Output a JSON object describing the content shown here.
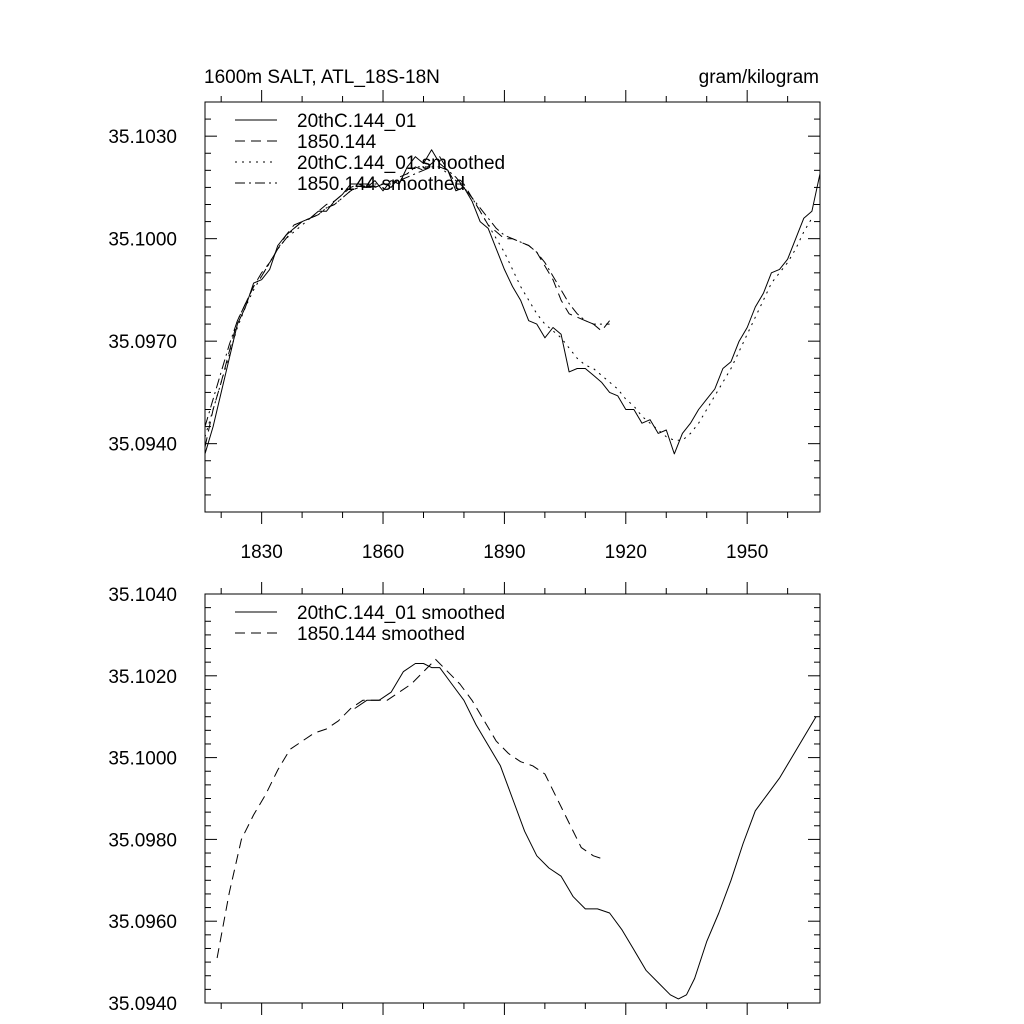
{
  "chart_data": [
    {
      "type": "line",
      "title": "1600m SALT, ATL_18S-18N",
      "units": "gram/kilogram",
      "xlabel": "",
      "ylabel": "",
      "xlim": [
        1816,
        1968
      ],
      "ylim": [
        35.092,
        35.104
      ],
      "xticks": [
        1830,
        1860,
        1890,
        1920,
        1950
      ],
      "yticks": [
        35.094,
        35.097,
        35.1,
        35.103
      ],
      "ytick_labels": [
        "35.0940",
        "35.0970",
        "35.1000",
        "35.1030"
      ],
      "legend_position": "top-left",
      "series": [
        {
          "name": "20thC.144_01",
          "dash": "solid",
          "x": [
            1816,
            1818,
            1820,
            1822,
            1824,
            1826,
            1828,
            1830,
            1832,
            1834,
            1836,
            1838,
            1840,
            1842,
            1844,
            1846,
            1848,
            1850,
            1852,
            1854,
            1856,
            1858,
            1860,
            1862,
            1864,
            1866,
            1868,
            1870,
            1872,
            1874,
            1876,
            1878,
            1880,
            1882,
            1884,
            1886,
            1888,
            1890,
            1892,
            1894,
            1896,
            1898,
            1900,
            1902,
            1904,
            1906,
            1908,
            1910,
            1912,
            1914,
            1916,
            1918,
            1920,
            1922,
            1924,
            1926,
            1928,
            1930,
            1932,
            1934,
            1936,
            1938,
            1940,
            1942,
            1944,
            1946,
            1948,
            1950,
            1952,
            1954,
            1956,
            1958,
            1960,
            1962,
            1964,
            1966,
            1968
          ],
          "values": [
            35.0937,
            35.0945,
            35.0955,
            35.0965,
            35.0975,
            35.098,
            35.0987,
            35.0988,
            35.0991,
            35.0998,
            35.1001,
            35.1003,
            35.1005,
            35.1006,
            35.1008,
            35.1008,
            35.1011,
            35.1013,
            35.1016,
            35.1016,
            35.1015,
            35.1017,
            35.1014,
            35.1017,
            35.1016,
            35.1021,
            35.1024,
            35.1022,
            35.1026,
            35.1022,
            35.102,
            35.1014,
            35.1015,
            35.1011,
            35.1005,
            35.1003,
            35.0997,
            35.0991,
            35.0986,
            35.0982,
            35.0976,
            35.0975,
            35.0971,
            35.0974,
            35.0972,
            35.0961,
            35.0962,
            35.0962,
            35.096,
            35.0958,
            35.0955,
            35.0954,
            35.095,
            35.095,
            35.0946,
            35.0947,
            35.0943,
            35.0944,
            35.0937,
            35.0943,
            35.0946,
            35.095,
            35.0953,
            35.0956,
            35.0962,
            35.0964,
            35.097,
            35.0974,
            35.098,
            35.0984,
            35.099,
            35.0991,
            35.0994,
            35.1,
            35.1006,
            35.1008,
            35.1019
          ]
        },
        {
          "name": "1850.144",
          "dash": "dashed",
          "x": [
            1816,
            1818,
            1820,
            1822,
            1824,
            1826,
            1828,
            1830,
            1832,
            1834,
            1836,
            1838,
            1840,
            1842,
            1844,
            1846,
            1848,
            1850,
            1852,
            1854,
            1856,
            1858,
            1860,
            1862,
            1864,
            1866,
            1868,
            1870,
            1872,
            1874,
            1876,
            1878,
            1880,
            1882,
            1884,
            1886,
            1888,
            1890,
            1892,
            1894,
            1896,
            1898,
            1900,
            1902,
            1904,
            1906,
            1908,
            1910,
            1912,
            1914,
            1916
          ],
          "values": [
            35.0939,
            35.095,
            35.0958,
            35.0967,
            35.0976,
            35.0981,
            35.0986,
            35.099,
            35.0993,
            35.0997,
            35.1001,
            35.1004,
            35.1005,
            35.1006,
            35.1008,
            35.101,
            35.1011,
            35.1013,
            35.1015,
            35.1016,
            35.1016,
            35.1015,
            35.1016,
            35.1015,
            35.1018,
            35.1019,
            35.1021,
            35.102,
            35.1022,
            35.1024,
            35.102,
            35.1016,
            35.1016,
            35.1012,
            35.1008,
            35.1004,
            35.1002,
            35.1,
            35.1,
            35.0999,
            35.0998,
            35.0996,
            35.0992,
            35.0988,
            35.0982,
            35.0978,
            35.0977,
            35.0976,
            35.0975,
            35.0973,
            35.0976
          ]
        },
        {
          "name": "20thC.144_01 smoothed",
          "dash": "dotted",
          "x": [
            1816,
            1818,
            1820,
            1822,
            1824,
            1826,
            1828,
            1830,
            1832,
            1834,
            1836,
            1838,
            1840,
            1842,
            1844,
            1846,
            1848,
            1850,
            1852,
            1854,
            1856,
            1858,
            1860,
            1862,
            1864,
            1866,
            1868,
            1870,
            1872,
            1874,
            1876,
            1878,
            1880,
            1882,
            1884,
            1886,
            1888,
            1890,
            1892,
            1894,
            1896,
            1898,
            1900,
            1902,
            1904,
            1906,
            1908,
            1910,
            1912,
            1914,
            1916,
            1918,
            1920,
            1922,
            1924,
            1926,
            1928,
            1930,
            1932,
            1934,
            1936,
            1938,
            1940,
            1942,
            1944,
            1946,
            1948,
            1950,
            1952,
            1954,
            1956,
            1958,
            1960,
            1962,
            1964,
            1966
          ],
          "values": [
            35.0942,
            35.095,
            35.0958,
            35.0966,
            35.0974,
            35.098,
            35.0985,
            35.0989,
            35.0993,
            35.0997,
            35.1,
            35.1002,
            35.1004,
            35.1006,
            35.1007,
            35.1009,
            35.101,
            35.1012,
            35.1014,
            35.1015,
            35.1016,
            35.1016,
            35.1016,
            35.1016,
            35.1017,
            35.1019,
            35.1021,
            35.1021,
            35.1021,
            35.1021,
            35.1019,
            35.1017,
            35.1015,
            35.1012,
            35.1008,
            35.1004,
            35.1,
            35.0996,
            35.0991,
            35.0986,
            35.0982,
            35.0978,
            35.0975,
            35.0973,
            35.0971,
            35.0968,
            35.0965,
            35.0963,
            35.0962,
            35.096,
            35.0958,
            35.0956,
            35.0953,
            35.0951,
            35.0948,
            35.0946,
            35.0944,
            35.0942,
            35.0941,
            35.0941,
            35.0943,
            35.0946,
            35.095,
            35.0954,
            35.0958,
            35.0962,
            35.0967,
            35.0972,
            35.0977,
            35.0982,
            35.0987,
            35.099,
            35.0993,
            35.0997,
            35.1002,
            35.1006
          ]
        },
        {
          "name": "1850.144 smoothed",
          "dash": "dashdot",
          "x": [
            1816,
            1818,
            1820,
            1822,
            1824,
            1826,
            1828,
            1830,
            1832,
            1834,
            1836,
            1838,
            1840,
            1842,
            1844,
            1846,
            1848,
            1850,
            1852,
            1854,
            1856,
            1858,
            1860,
            1862,
            1864,
            1866,
            1868,
            1870,
            1872,
            1874,
            1876,
            1878,
            1880,
            1882,
            1884,
            1886,
            1888,
            1890,
            1892,
            1894,
            1896,
            1898,
            1900,
            1902,
            1904,
            1906,
            1908,
            1910,
            1912,
            1914,
            1916
          ],
          "values": [
            35.0945,
            35.0953,
            35.0961,
            35.0969,
            35.0976,
            35.0981,
            35.0986,
            35.0989,
            35.0993,
            35.0997,
            35.1,
            35.1003,
            35.1005,
            35.1006,
            35.1007,
            35.1009,
            35.101,
            35.1012,
            35.1014,
            35.1015,
            35.1015,
            35.1015,
            35.1016,
            35.1016,
            35.1017,
            35.1018,
            35.1019,
            35.102,
            35.1021,
            35.1021,
            35.102,
            35.1018,
            35.1015,
            35.1012,
            35.1009,
            35.1006,
            35.1003,
            35.1001,
            35.1,
            35.0999,
            35.0998,
            35.0996,
            35.0993,
            35.0989,
            35.0985,
            35.0981,
            35.0978,
            35.0976,
            35.0975,
            35.0975,
            35.0975
          ]
        }
      ]
    },
    {
      "type": "line",
      "title": "",
      "xlabel": "",
      "ylabel": "",
      "xlim": [
        1816,
        1968
      ],
      "ylim": [
        35.094,
        35.104
      ],
      "xticks": [
        1830,
        1860,
        1890,
        1920,
        1950
      ],
      "yticks": [
        35.094,
        35.096,
        35.098,
        35.1,
        35.102,
        35.104
      ],
      "ytick_labels": [
        "35.0940",
        "35.0960",
        "35.0980",
        "35.1000",
        "35.1020",
        "35.1040"
      ],
      "legend_position": "top-left",
      "series": [
        {
          "name": "20thC.144_01 smoothed",
          "dash": "solid",
          "x": [
            1853,
            1856,
            1859,
            1862,
            1865,
            1868,
            1870,
            1872,
            1874,
            1877,
            1880,
            1883,
            1886,
            1889,
            1892,
            1895,
            1898,
            1901,
            1904,
            1907,
            1910,
            1913,
            1916,
            1919,
            1922,
            1925,
            1928,
            1931,
            1933,
            1935,
            1937,
            1940,
            1943,
            1946,
            1949,
            1952,
            1955,
            1958,
            1961,
            1964,
            1967
          ],
          "values": [
            35.1012,
            35.1014,
            35.1014,
            35.1016,
            35.1021,
            35.1023,
            35.1023,
            35.1022,
            35.1022,
            35.1018,
            35.1014,
            35.1008,
            35.1003,
            35.0998,
            35.099,
            35.0982,
            35.0976,
            35.0973,
            35.0971,
            35.0966,
            35.0963,
            35.0963,
            35.0962,
            35.0958,
            35.0953,
            35.0948,
            35.0945,
            35.0942,
            35.0941,
            35.0942,
            35.0946,
            35.0955,
            35.0962,
            35.097,
            35.0979,
            35.0987,
            35.0991,
            35.0995,
            35.1,
            35.1005,
            35.101
          ]
        },
        {
          "name": "1850.144 smoothed",
          "dash": "dashed",
          "x": [
            1819,
            1822,
            1825,
            1828,
            1831,
            1834,
            1837,
            1840,
            1843,
            1846,
            1849,
            1852,
            1855,
            1858,
            1861,
            1864,
            1867,
            1870,
            1873,
            1876,
            1879,
            1882,
            1885,
            1888,
            1891,
            1894,
            1897,
            1900,
            1903,
            1906,
            1909,
            1912,
            1915
          ],
          "values": [
            35.0951,
            35.0967,
            35.098,
            35.0986,
            35.0991,
            35.0997,
            35.1002,
            35.1004,
            35.1006,
            35.1007,
            35.1009,
            35.1012,
            35.1014,
            35.1014,
            35.1014,
            35.1016,
            35.1018,
            35.1021,
            35.1024,
            35.1021,
            35.1018,
            35.1014,
            35.1009,
            35.1004,
            35.1001,
            35.0999,
            35.0998,
            35.0996,
            35.099,
            35.0984,
            35.0978,
            35.0976,
            35.0975
          ]
        }
      ]
    }
  ]
}
